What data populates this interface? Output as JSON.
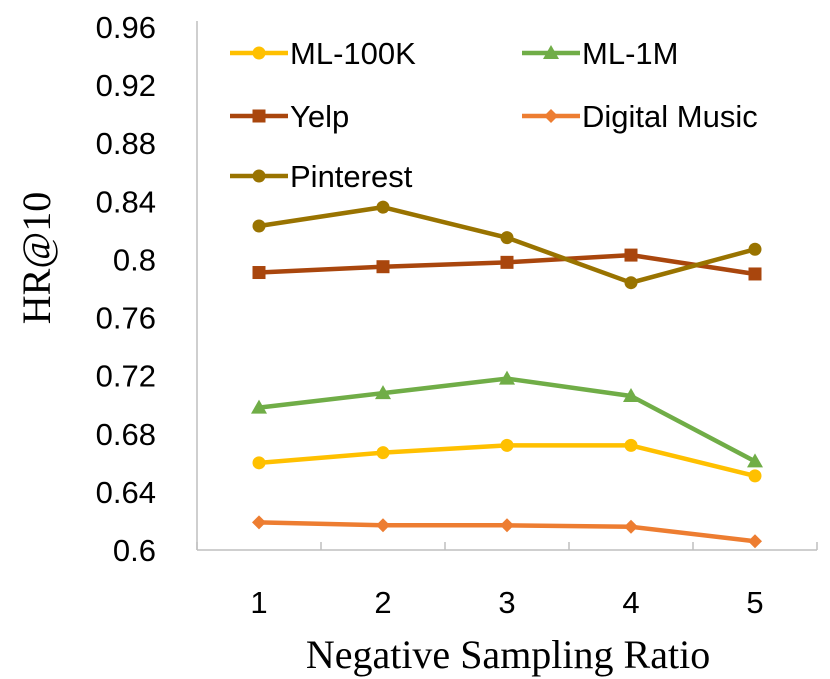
{
  "chart_data": {
    "type": "line",
    "title": "",
    "xlabel": "Negative Sampling Ratio",
    "ylabel": "HR@10",
    "x": [
      1,
      2,
      3,
      4,
      5
    ],
    "x_tick_labels": [
      "1",
      "2",
      "3",
      "4",
      "5"
    ],
    "ylim": [
      0.6,
      0.96
    ],
    "y_ticks": [
      0.6,
      0.64,
      0.68,
      0.72,
      0.76,
      0.8,
      0.84,
      0.88,
      0.92,
      0.96
    ],
    "y_tick_labels": [
      "0.6",
      "0.64",
      "0.68",
      "0.72",
      "0.76",
      "0.8",
      "0.84",
      "0.88",
      "0.92",
      "0.96"
    ],
    "grid": false,
    "legend_position": "top",
    "series": [
      {
        "name": "ML-100K",
        "marker": "circle",
        "color": "#FFC000",
        "values": [
          0.66,
          0.667,
          0.672,
          0.672,
          0.651
        ]
      },
      {
        "name": "ML-1M",
        "marker": "triangle",
        "color": "#70AD47",
        "values": [
          0.698,
          0.708,
          0.718,
          0.706,
          0.661
        ]
      },
      {
        "name": "Yelp",
        "marker": "square",
        "color": "#A9460D",
        "values": [
          0.791,
          0.795,
          0.798,
          0.803,
          0.79
        ]
      },
      {
        "name": "Digital Music",
        "marker": "diamond",
        "color": "#ED7D31",
        "values": [
          0.619,
          0.617,
          0.617,
          0.616,
          0.606
        ]
      },
      {
        "name": "Pinterest",
        "marker": "circle",
        "color": "#997300",
        "values": [
          0.823,
          0.836,
          0.815,
          0.784,
          0.807
        ]
      }
    ]
  }
}
